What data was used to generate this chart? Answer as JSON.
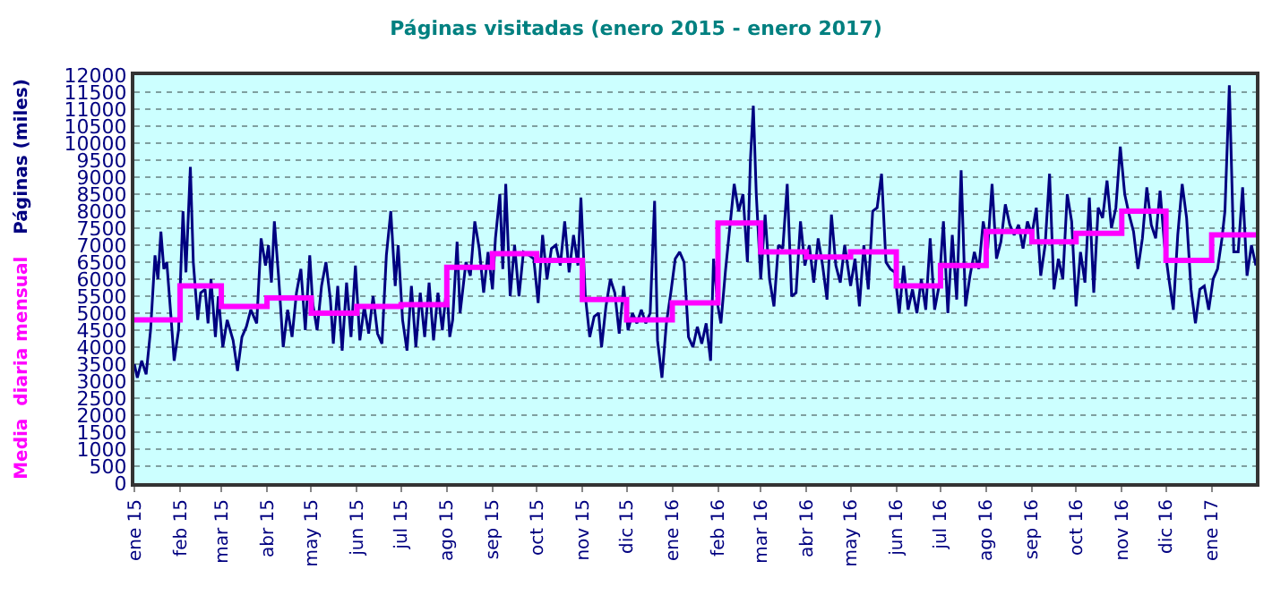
{
  "chart_data": {
    "type": "line",
    "title": "Páginas visitadas (enero 2015 - enero 2017)",
    "series": [
      {
        "name": "Páginas (miles)",
        "color": "#000080",
        "x": [
          "2015-01-01",
          "2015-01-03",
          "2015-01-06",
          "2015-01-09",
          "2015-01-12",
          "2015-01-15",
          "2015-01-17",
          "2015-01-19",
          "2015-01-21",
          "2015-01-23",
          "2015-01-26",
          "2015-01-28",
          "2015-01-31",
          "2015-02-03",
          "2015-02-05",
          "2015-02-08",
          "2015-02-10",
          "2015-02-13",
          "2015-02-15",
          "2015-02-18",
          "2015-02-20",
          "2015-02-22",
          "2015-02-25",
          "2015-02-27",
          "2015-03-02",
          "2015-03-05",
          "2015-03-09",
          "2015-03-12",
          "2015-03-15",
          "2015-03-18",
          "2015-03-21",
          "2015-03-25",
          "2015-03-28",
          "2015-03-31",
          "2015-04-02",
          "2015-04-04",
          "2015-04-06",
          "2015-04-09",
          "2015-04-12",
          "2015-04-15",
          "2015-04-18",
          "2015-04-21",
          "2015-04-24",
          "2015-04-27",
          "2015-04-30",
          "2015-05-02",
          "2015-05-05",
          "2015-05-08",
          "2015-05-11",
          "2015-05-14",
          "2015-05-16",
          "2015-05-19",
          "2015-05-22",
          "2015-05-25",
          "2015-05-28",
          "2015-05-31",
          "2015-06-03",
          "2015-06-06",
          "2015-06-09",
          "2015-06-12",
          "2015-06-15",
          "2015-06-18",
          "2015-06-21",
          "2015-06-24",
          "2015-06-27",
          "2015-06-29",
          "2015-07-02",
          "2015-07-05",
          "2015-07-08",
          "2015-07-11",
          "2015-07-14",
          "2015-07-17",
          "2015-07-20",
          "2015-07-23",
          "2015-07-26",
          "2015-07-29",
          "2015-08-01",
          "2015-08-03",
          "2015-08-05",
          "2015-08-08",
          "2015-08-10",
          "2015-08-14",
          "2015-08-17",
          "2015-08-20",
          "2015-08-23",
          "2015-08-26",
          "2015-08-29",
          "2015-09-01",
          "2015-09-03",
          "2015-09-06",
          "2015-09-08",
          "2015-09-10",
          "2015-09-13",
          "2015-09-16",
          "2015-09-19",
          "2015-09-22",
          "2015-09-26",
          "2015-09-29",
          "2015-10-02",
          "2015-10-05",
          "2015-10-08",
          "2015-10-11",
          "2015-10-14",
          "2015-10-17",
          "2015-10-20",
          "2015-10-23",
          "2015-10-26",
          "2015-10-29",
          "2015-10-31",
          "2015-11-03",
          "2015-11-06",
          "2015-11-09",
          "2015-11-12",
          "2015-11-14",
          "2015-11-17",
          "2015-11-20",
          "2015-11-23",
          "2015-11-26",
          "2015-11-29",
          "2015-12-02",
          "2015-12-05",
          "2015-12-08",
          "2015-12-11",
          "2015-12-14",
          "2015-12-17",
          "2015-12-20",
          "2015-12-22",
          "2015-12-25",
          "2015-12-28",
          "2015-12-31",
          "2016-01-03",
          "2016-01-06",
          "2016-01-09",
          "2016-01-12",
          "2016-01-15",
          "2016-01-18",
          "2016-01-21",
          "2016-01-24",
          "2016-01-27",
          "2016-01-29",
          "2016-02-01",
          "2016-02-03",
          "2016-02-06",
          "2016-02-09",
          "2016-02-12",
          "2016-02-15",
          "2016-02-18",
          "2016-02-21",
          "2016-02-23",
          "2016-02-25",
          "2016-02-27",
          "2016-03-01",
          "2016-03-04",
          "2016-03-07",
          "2016-03-10",
          "2016-03-13",
          "2016-03-16",
          "2016-03-19",
          "2016-03-22",
          "2016-03-25",
          "2016-03-28",
          "2016-03-31",
          "2016-04-03",
          "2016-04-06",
          "2016-04-09",
          "2016-04-12",
          "2016-04-15",
          "2016-04-18",
          "2016-04-21",
          "2016-04-24",
          "2016-04-27",
          "2016-05-01",
          "2016-05-04",
          "2016-05-07",
          "2016-05-10",
          "2016-05-13",
          "2016-05-16",
          "2016-05-19",
          "2016-05-22",
          "2016-05-25",
          "2016-05-28",
          "2016-05-31",
          "2016-06-03",
          "2016-06-06",
          "2016-06-09",
          "2016-06-12",
          "2016-06-15",
          "2016-06-18",
          "2016-06-21",
          "2016-06-24",
          "2016-06-27",
          "2016-06-30",
          "2016-07-03",
          "2016-07-06",
          "2016-07-09",
          "2016-07-12",
          "2016-07-15",
          "2016-07-18",
          "2016-07-21",
          "2016-07-24",
          "2016-07-27",
          "2016-07-30",
          "2016-08-02",
          "2016-08-05",
          "2016-08-08",
          "2016-08-11",
          "2016-08-14",
          "2016-08-17",
          "2016-08-20",
          "2016-08-23",
          "2016-08-26",
          "2016-08-29",
          "2016-09-01",
          "2016-09-04",
          "2016-09-07",
          "2016-09-10",
          "2016-09-13",
          "2016-09-16",
          "2016-09-19",
          "2016-09-22",
          "2016-09-25",
          "2016-09-28",
          "2016-10-01",
          "2016-10-04",
          "2016-10-07",
          "2016-10-10",
          "2016-10-13",
          "2016-10-16",
          "2016-10-19",
          "2016-10-22",
          "2016-10-25",
          "2016-10-28",
          "2016-10-31",
          "2016-11-03",
          "2016-11-06",
          "2016-11-09",
          "2016-11-12",
          "2016-11-15",
          "2016-11-18",
          "2016-11-21",
          "2016-11-24",
          "2016-11-27",
          "2016-11-30",
          "2016-12-03",
          "2016-12-06",
          "2016-12-09",
          "2016-12-12",
          "2016-12-15",
          "2016-12-18",
          "2016-12-21",
          "2016-12-24",
          "2016-12-27",
          "2016-12-30",
          "2017-01-02",
          "2017-01-05",
          "2017-01-08",
          "2017-01-10",
          "2017-01-13",
          "2017-01-16",
          "2017-01-19",
          "2017-01-22",
          "2017-01-25",
          "2017-01-28",
          "2017-01-31"
        ],
        "values": [
          3500,
          3100,
          3600,
          3200,
          4500,
          6700,
          6000,
          7400,
          6300,
          6500,
          4800,
          3600,
          4500,
          8000,
          6200,
          9300,
          6500,
          4800,
          5600,
          5700,
          4700,
          6000,
          4300,
          5500,
          4000,
          4800,
          4200,
          3300,
          4300,
          4600,
          5100,
          4700,
          7200,
          6400,
          7000,
          5900,
          7700,
          6000,
          4000,
          5100,
          4300,
          5600,
          6300,
          4500,
          6700,
          5300,
          4500,
          5800,
          6500,
          5400,
          4100,
          5800,
          3900,
          5900,
          4300,
          6400,
          4200,
          5200,
          4400,
          5500,
          4400,
          4100,
          6700,
          8000,
          5800,
          7000,
          4800,
          3900,
          5800,
          4000,
          5600,
          4300,
          5900,
          4200,
          5600,
          4500,
          5800,
          4300,
          4800,
          7100,
          5000,
          6500,
          6100,
          7700,
          6900,
          5600,
          6800,
          5700,
          7200,
          8500,
          6300,
          8800,
          5500,
          7000,
          5500,
          6800,
          6700,
          6600,
          5300,
          7300,
          6000,
          6900,
          7000,
          6400,
          7700,
          6200,
          7300,
          6400,
          8400,
          5500,
          4300,
          4900,
          5000,
          4000,
          5200,
          6000,
          5600,
          4400,
          5800,
          4500,
          5000,
          4700,
          5100,
          4700,
          5000,
          8300,
          4200,
          3100,
          4700,
          5600,
          6600,
          6800,
          6500,
          4300,
          4000,
          4600,
          4100,
          4700,
          3600,
          6600,
          5200,
          4700,
          6200,
          7500,
          8800,
          8000,
          8500,
          6500,
          9500,
          11100,
          8500,
          6000,
          7900,
          6000,
          5200,
          7000,
          6900,
          8800,
          5500,
          5600,
          7700,
          6400,
          7000,
          5900,
          7200,
          6400,
          5400,
          7900,
          6400,
          5900,
          7000,
          5800,
          6600,
          5200,
          7000,
          5700,
          8000,
          8100,
          9100,
          6500,
          6300,
          6200,
          5000,
          6400,
          5100,
          5700,
          5000,
          6000,
          5100,
          7200,
          5100,
          5800,
          7700,
          5000,
          7300,
          5400,
          9200,
          5200,
          6100,
          6800,
          6300,
          7700,
          6900,
          8800,
          6600,
          7100,
          8200,
          7600,
          7300,
          7600,
          6900,
          7700,
          7300,
          8100,
          6100,
          7000,
          9100,
          5700,
          6600,
          6000,
          8500,
          7700,
          5200,
          6800,
          5900,
          8400,
          5600,
          8100,
          7800,
          8900,
          7500,
          8100,
          9900,
          8500,
          7900,
          7400,
          6300,
          7200,
          8700,
          7600,
          7200,
          8600,
          7000,
          6000,
          5100,
          7300,
          8800,
          7800,
          5700,
          4700,
          5700,
          5800,
          5100,
          6000,
          6300,
          7200,
          8000,
          11700,
          6800,
          6800,
          8700,
          6100,
          7000,
          6400
        ]
      },
      {
        "name": "Media  diaria mensual",
        "type": "step",
        "color": "#ff00ff",
        "x": [
          "2015-01-01",
          "2015-02-01",
          "2015-03-01",
          "2015-04-01",
          "2015-05-01",
          "2015-06-01",
          "2015-07-01",
          "2015-08-01",
          "2015-09-01",
          "2015-10-01",
          "2015-11-01",
          "2015-12-01",
          "2016-01-01",
          "2016-02-01",
          "2016-03-01",
          "2016-04-01",
          "2016-05-01",
          "2016-06-01",
          "2016-07-01",
          "2016-08-01",
          "2016-09-01",
          "2016-10-01",
          "2016-11-01",
          "2016-12-01",
          "2017-01-01",
          "2017-01-31"
        ],
        "values": [
          4800,
          5800,
          5200,
          5450,
          5000,
          5200,
          5250,
          6350,
          6750,
          6550,
          5400,
          4800,
          5300,
          7650,
          6800,
          6650,
          6800,
          5800,
          6400,
          7400,
          7100,
          7350,
          8000,
          6550,
          7300,
          7300
        ]
      }
    ],
    "xlim": [
      "2015-01-01",
      "2017-01-31"
    ],
    "xticks": [
      {
        "value": "2015-01-01",
        "label": "ene 15"
      },
      {
        "value": "2015-02-01",
        "label": "feb 15"
      },
      {
        "value": "2015-03-01",
        "label": "mar 15"
      },
      {
        "value": "2015-04-01",
        "label": "abr 15"
      },
      {
        "value": "2015-05-01",
        "label": "may 15"
      },
      {
        "value": "2015-06-01",
        "label": "jun 15"
      },
      {
        "value": "2015-07-01",
        "label": "jul 15"
      },
      {
        "value": "2015-08-01",
        "label": "ago 15"
      },
      {
        "value": "2015-09-01",
        "label": "sep 15"
      },
      {
        "value": "2015-10-01",
        "label": "oct 15"
      },
      {
        "value": "2015-11-01",
        "label": "nov 15"
      },
      {
        "value": "2015-12-01",
        "label": "dic 15"
      },
      {
        "value": "2016-01-01",
        "label": "ene 16"
      },
      {
        "value": "2016-02-01",
        "label": "feb 16"
      },
      {
        "value": "2016-03-01",
        "label": "mar 16"
      },
      {
        "value": "2016-04-01",
        "label": "abr 16"
      },
      {
        "value": "2016-05-01",
        "label": "may 16"
      },
      {
        "value": "2016-06-01",
        "label": "jun 16"
      },
      {
        "value": "2016-07-01",
        "label": "jul 16"
      },
      {
        "value": "2016-08-01",
        "label": "ago 16"
      },
      {
        "value": "2016-09-01",
        "label": "sep 16"
      },
      {
        "value": "2016-10-01",
        "label": "oct 16"
      },
      {
        "value": "2016-11-01",
        "label": "nov 16"
      },
      {
        "value": "2016-12-01",
        "label": "dic 16"
      },
      {
        "value": "2017-01-01",
        "label": "ene 17"
      }
    ],
    "ylim": [
      0,
      12000
    ],
    "yticks": [
      0,
      500,
      1000,
      1500,
      2000,
      2500,
      3000,
      3500,
      4000,
      4500,
      5000,
      5500,
      6000,
      6500,
      7000,
      7500,
      8000,
      8500,
      9000,
      9500,
      10000,
      10500,
      11000,
      11500,
      12000
    ],
    "grid": "y",
    "legend": false,
    "marker": "none",
    "line_style": "solid"
  }
}
